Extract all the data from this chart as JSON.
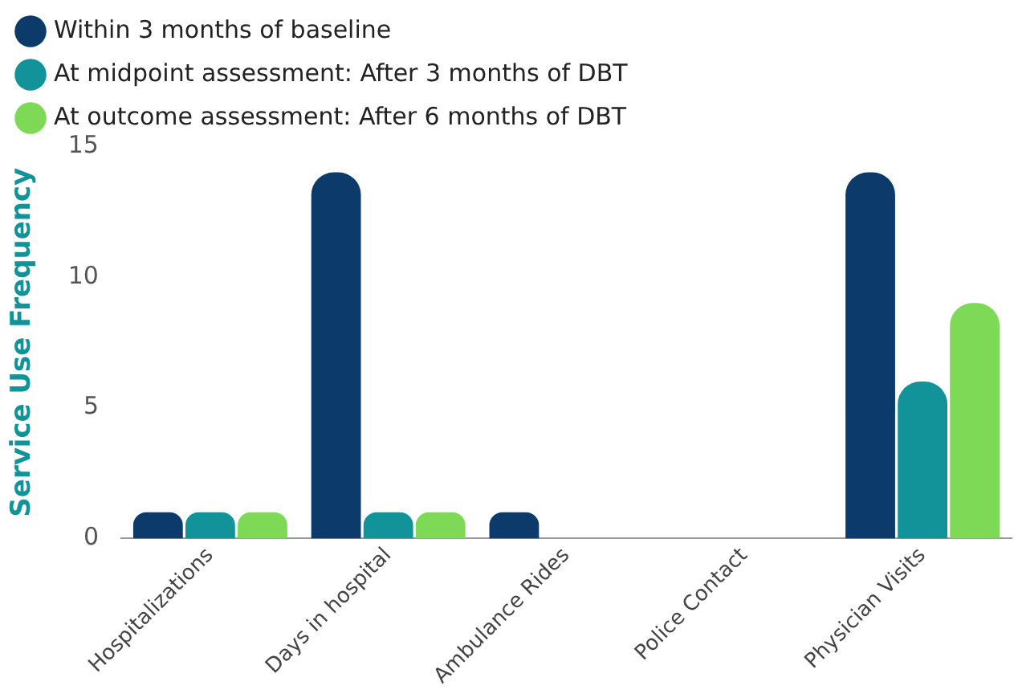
{
  "chart_data": {
    "type": "bar",
    "ylabel": "Service Use Frequency",
    "categories": [
      "Hospitalizations",
      "Days in hospital",
      "Ambulance Rides",
      "Police Contact",
      "Physician Visits"
    ],
    "series": [
      {
        "name": "Within 3 months of baseline",
        "color": "#0c3b6b",
        "values": [
          1,
          14,
          1,
          0,
          14
        ]
      },
      {
        "name": "At midpoint assessment: After 3 months of DBT",
        "color": "#12939a",
        "values": [
          1,
          1,
          0,
          0,
          6
        ]
      },
      {
        "name": "At outcome assessment: After 6 months of DBT",
        "color": "#7ed957",
        "values": [
          1,
          1,
          0,
          0,
          9
        ]
      }
    ],
    "ylim": [
      0,
      15
    ],
    "yticks": [
      0,
      5,
      10,
      15
    ],
    "grid": false,
    "legend": "top left"
  }
}
